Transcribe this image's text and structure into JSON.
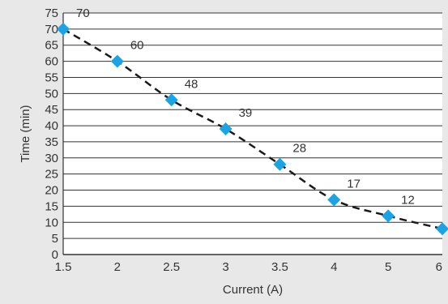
{
  "chart_data": {
    "type": "line",
    "xlabel": "Current (A)",
    "ylabel": "Time (min)",
    "x_ticks": [
      "1.5",
      "2",
      "2.5",
      "3",
      "3.5",
      "4",
      "5",
      "6"
    ],
    "y_ticks": [
      "0",
      "5",
      "10",
      "15",
      "20",
      "25",
      "30",
      "35",
      "40",
      "45",
      "50",
      "55",
      "60",
      "65",
      "70",
      "75"
    ],
    "ylim": [
      0,
      75
    ],
    "grid": "horizontal",
    "legend": "none",
    "series": [
      {
        "x": [
          "1.5",
          "2",
          "2.5",
          "3",
          "3.5",
          "4",
          "5",
          "6"
        ],
        "values": [
          70,
          60,
          48,
          39,
          28,
          17,
          12,
          8
        ],
        "labels": [
          "70",
          "60",
          "48",
          "39",
          "28",
          "17",
          "12",
          ""
        ]
      }
    ],
    "colors": {
      "background": "#e8e8e8",
      "plot_background": "#ffffff",
      "gridline": "#333333",
      "marker": "#1ba3e3",
      "line": "#1a1a1a"
    },
    "marker_shape": "diamond",
    "line_style": "dashed"
  }
}
